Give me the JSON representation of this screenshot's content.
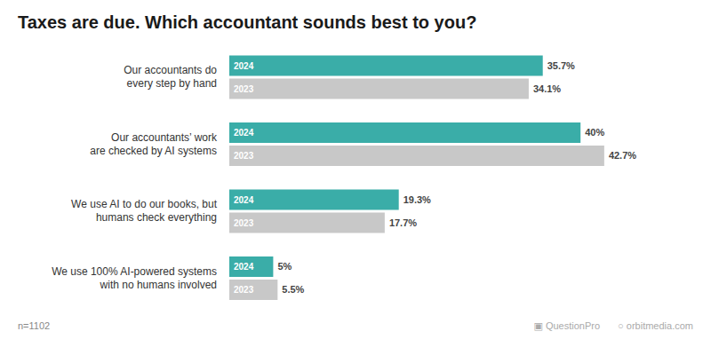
{
  "chart_data": {
    "type": "bar",
    "orientation": "horizontal",
    "title": "Taxes are due. Which accountant sounds best to you?",
    "categories": [
      "Our accountants do\nevery step by hand",
      "Our accountants’ work\nare checked by AI systems",
      "We use AI to do our books, but\nhumans check everything",
      "We use 100% AI-powered systems\nwith no humans involved"
    ],
    "series": [
      {
        "name": "2024",
        "color": "#3aada8",
        "values": [
          35.7,
          40.0,
          19.3,
          5.0
        ],
        "value_labels": [
          "35.7%",
          "40%",
          "19.3%",
          "5%"
        ]
      },
      {
        "name": "2023",
        "color": "#c8c8c8",
        "values": [
          34.1,
          42.7,
          17.7,
          5.5
        ],
        "value_labels": [
          "34.1%",
          "42.7%",
          "17.7%",
          "5.5%"
        ]
      }
    ],
    "xlim": [
      0,
      50
    ],
    "grid": false,
    "data_labels": true,
    "tick_labels": "y",
    "annotations": [
      "n=1102",
      "▣ QuestionPro",
      "○ orbitmedia.com"
    ]
  }
}
